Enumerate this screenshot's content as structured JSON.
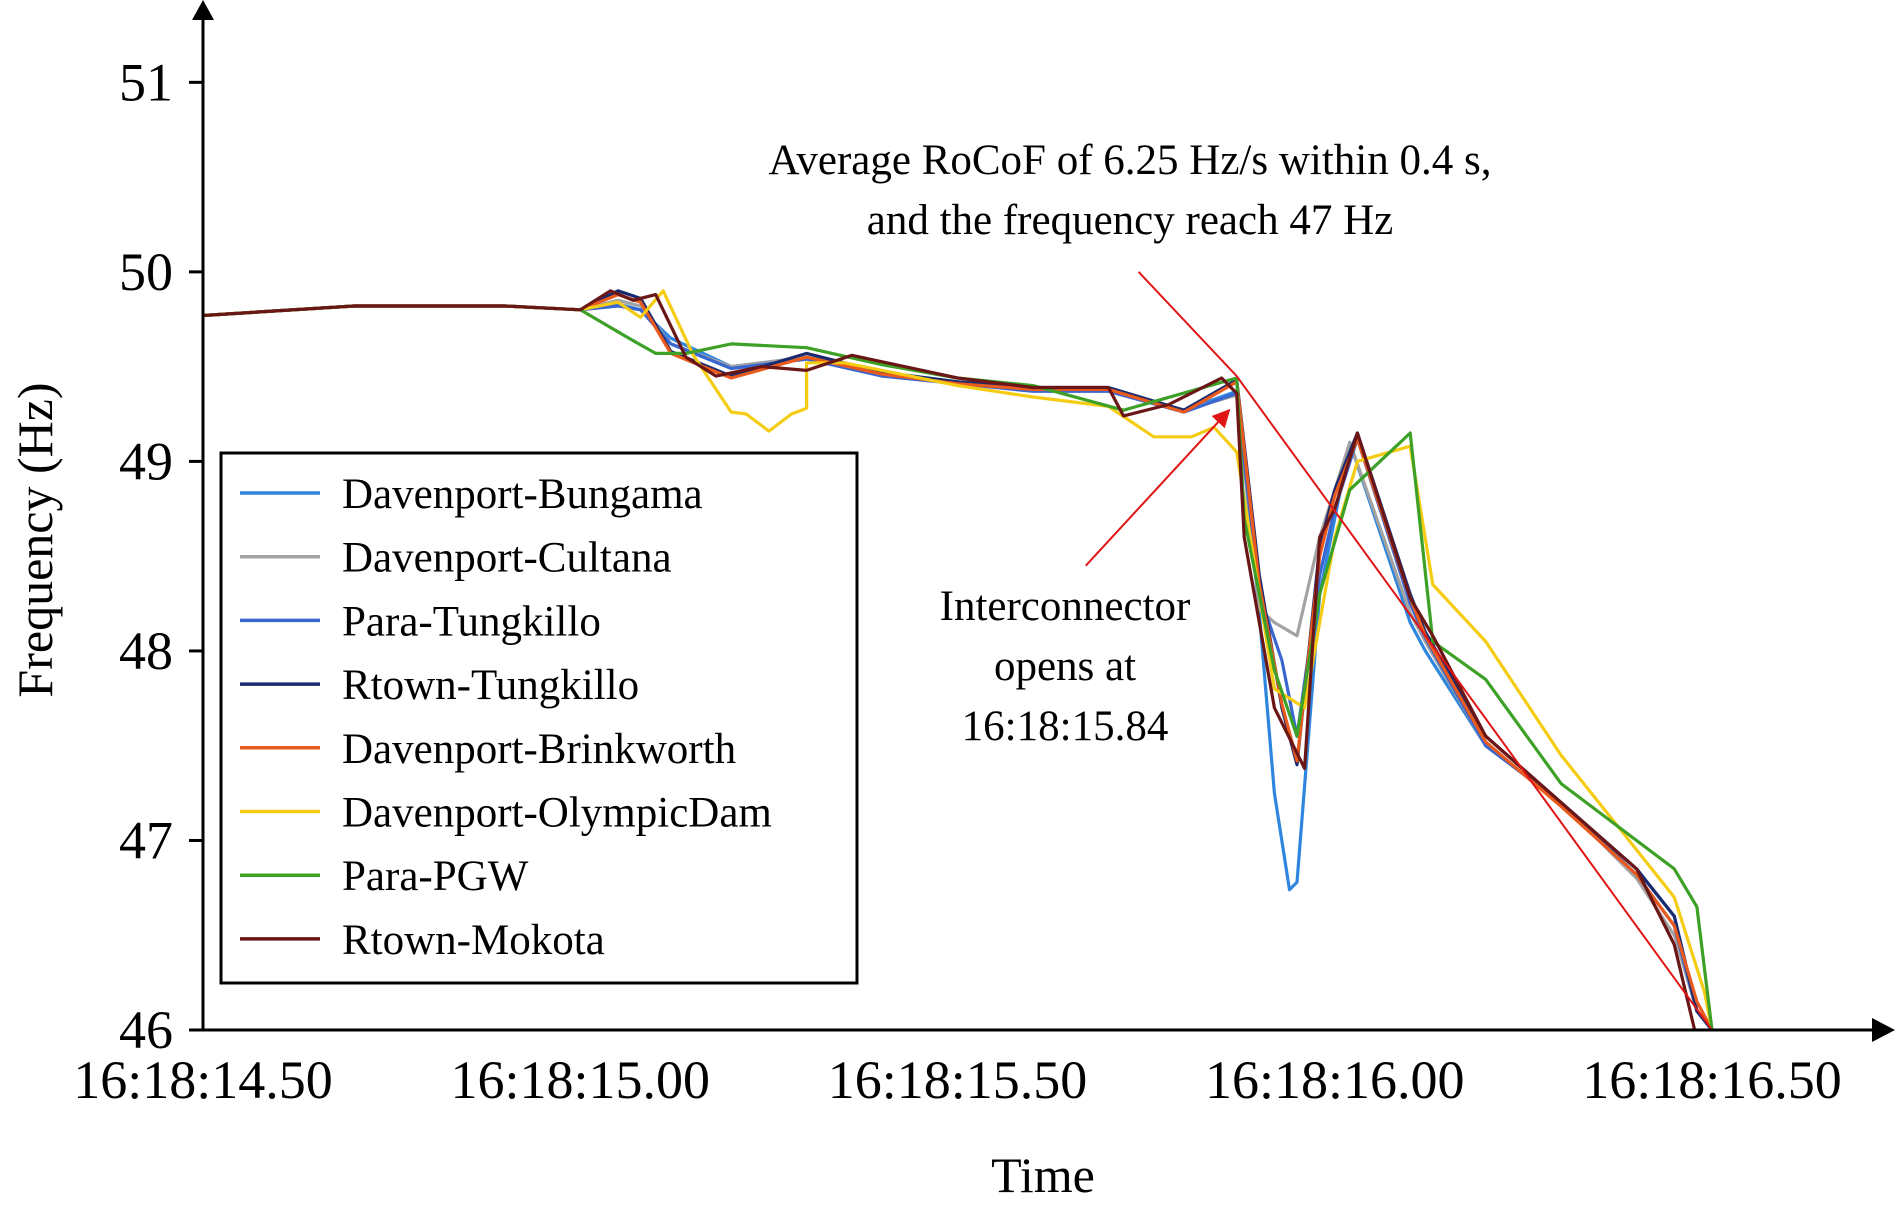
{
  "chart_data": {
    "type": "line",
    "title": "",
    "xlabel": "Time",
    "ylabel": "Frequency (Hz)",
    "x_unit": "seconds after 16:18:00",
    "xlim": [
      14.5,
      16.72
    ],
    "ylim": [
      46,
      51.35
    ],
    "x_ticks": [
      {
        "value": 14.5,
        "label": "16:18:14.50"
      },
      {
        "value": 15.0,
        "label": "16:18:15.00"
      },
      {
        "value": 15.5,
        "label": "16:18:15.50"
      },
      {
        "value": 16.0,
        "label": "16:18:16.00"
      },
      {
        "value": 16.5,
        "label": "16:18:16.50"
      }
    ],
    "y_ticks": [
      {
        "value": 46,
        "label": "46"
      },
      {
        "value": 47,
        "label": "47"
      },
      {
        "value": 48,
        "label": "48"
      },
      {
        "value": 49,
        "label": "49"
      },
      {
        "value": 50,
        "label": "50"
      },
      {
        "value": 51,
        "label": "51"
      }
    ],
    "grid": false,
    "legend_position": "bottom-left",
    "series": [
      {
        "name": "Davenport-Bungama",
        "color": "#2e86de",
        "x": [
          14.5,
          14.7,
          14.9,
          15.0,
          15.05,
          15.08,
          15.12,
          15.2,
          15.3,
          15.4,
          15.5,
          15.6,
          15.7,
          15.8,
          15.87,
          15.9,
          15.92,
          15.94,
          15.95,
          15.98,
          16.0,
          16.02,
          16.1,
          16.12,
          16.2,
          16.3,
          16.4,
          16.45,
          16.48,
          16.5,
          16.51
        ],
        "y": [
          49.77,
          49.82,
          49.82,
          49.8,
          49.83,
          49.8,
          49.65,
          49.5,
          49.55,
          49.47,
          49.42,
          49.38,
          49.38,
          49.27,
          49.37,
          48.2,
          47.25,
          46.74,
          46.78,
          48.3,
          48.7,
          49.1,
          48.15,
          48.0,
          47.5,
          47.2,
          46.85,
          46.6,
          46.1,
          46.0,
          45.98
        ]
      },
      {
        "name": "Davenport-Cultana",
        "color": "#a3a3a3",
        "x": [
          14.5,
          14.7,
          14.9,
          15.0,
          15.05,
          15.08,
          15.12,
          15.2,
          15.3,
          15.4,
          15.5,
          15.6,
          15.7,
          15.8,
          15.87,
          15.9,
          15.92,
          15.95,
          15.98,
          16.0,
          16.02,
          16.1,
          16.12,
          16.2,
          16.3,
          16.4,
          16.45,
          16.48,
          16.5
        ],
        "y": [
          49.77,
          49.82,
          49.82,
          49.8,
          49.85,
          49.82,
          49.62,
          49.5,
          49.55,
          49.46,
          49.42,
          49.38,
          49.38,
          49.27,
          49.35,
          48.22,
          48.15,
          48.08,
          48.6,
          48.85,
          49.1,
          48.2,
          48.05,
          47.5,
          47.2,
          46.8,
          46.5,
          46.1,
          46.0
        ]
      },
      {
        "name": "Para-Tungkillo",
        "color": "#3a66d0",
        "x": [
          14.5,
          14.7,
          14.9,
          15.0,
          15.05,
          15.08,
          15.12,
          15.2,
          15.3,
          15.4,
          15.5,
          15.6,
          15.7,
          15.8,
          15.87,
          15.9,
          15.93,
          15.95,
          15.98,
          16.0,
          16.03,
          16.1,
          16.12,
          16.2,
          16.3,
          16.4,
          16.45,
          16.48,
          16.5
        ],
        "y": [
          49.77,
          49.82,
          49.82,
          49.8,
          49.82,
          49.8,
          49.62,
          49.49,
          49.54,
          49.45,
          49.41,
          49.37,
          49.37,
          49.26,
          49.36,
          48.3,
          47.95,
          47.55,
          48.4,
          48.75,
          49.12,
          48.25,
          48.07,
          47.5,
          47.2,
          46.82,
          46.55,
          46.1,
          46.0
        ]
      },
      {
        "name": "Rtown-Tungkillo",
        "color": "#1a2a6e",
        "x": [
          14.5,
          14.7,
          14.9,
          15.0,
          15.05,
          15.08,
          15.12,
          15.2,
          15.3,
          15.4,
          15.5,
          15.6,
          15.7,
          15.8,
          15.87,
          15.9,
          15.93,
          15.95,
          15.98,
          16.0,
          16.03,
          16.1,
          16.12,
          16.2,
          16.3,
          16.4,
          16.45,
          16.48,
          16.5
        ],
        "y": [
          49.77,
          49.82,
          49.82,
          49.8,
          49.9,
          49.86,
          49.58,
          49.45,
          49.57,
          49.47,
          49.42,
          49.39,
          49.39,
          49.27,
          49.43,
          48.4,
          47.7,
          47.4,
          48.55,
          48.85,
          49.15,
          48.3,
          48.1,
          47.55,
          47.2,
          46.85,
          46.6,
          46.1,
          46.0
        ]
      },
      {
        "name": "Davenport-Brinkworth",
        "color": "#ea5a1c",
        "x": [
          14.5,
          14.7,
          14.9,
          15.0,
          15.05,
          15.08,
          15.12,
          15.2,
          15.3,
          15.4,
          15.5,
          15.6,
          15.7,
          15.8,
          15.87,
          15.9,
          15.93,
          15.95,
          15.98,
          16.0,
          16.03,
          16.1,
          16.12,
          16.2,
          16.3,
          16.4,
          16.45,
          16.48,
          16.5
        ],
        "y": [
          49.77,
          49.82,
          49.82,
          49.8,
          49.88,
          49.84,
          49.57,
          49.44,
          49.55,
          49.46,
          49.41,
          49.38,
          49.38,
          49.26,
          49.42,
          48.35,
          47.72,
          47.42,
          48.5,
          48.82,
          49.12,
          48.28,
          48.08,
          47.52,
          47.18,
          46.82,
          46.55,
          46.15,
          46.0
        ]
      },
      {
        "name": "Davenport-OlympicDam",
        "color": "#f5cc14",
        "x": [
          14.5,
          14.7,
          14.9,
          15.0,
          15.05,
          15.08,
          15.11,
          15.15,
          15.2,
          15.22,
          15.25,
          15.28,
          15.3,
          15.3,
          15.35,
          15.5,
          15.6,
          15.7,
          15.76,
          15.81,
          15.84,
          15.87,
          15.92,
          15.96,
          16.0,
          16.03,
          16.1,
          16.13,
          16.2,
          16.3,
          16.4,
          16.45,
          16.49,
          16.5
        ],
        "y": [
          49.77,
          49.82,
          49.82,
          49.8,
          49.84,
          49.76,
          49.9,
          49.56,
          49.26,
          49.25,
          49.16,
          49.25,
          49.28,
          49.52,
          49.52,
          49.4,
          49.34,
          49.29,
          49.13,
          49.13,
          49.18,
          49.05,
          47.8,
          47.7,
          48.6,
          49.0,
          49.08,
          48.35,
          48.05,
          47.45,
          46.95,
          46.7,
          46.2,
          46.0
        ]
      },
      {
        "name": "Para-PGW",
        "color": "#3da127",
        "x": [
          14.5,
          14.7,
          14.9,
          15.0,
          15.06,
          15.1,
          15.14,
          15.2,
          15.3,
          15.4,
          15.5,
          15.6,
          15.72,
          15.87,
          15.88,
          15.92,
          15.95,
          15.98,
          16.02,
          16.1,
          16.13,
          16.2,
          16.3,
          16.4,
          16.45,
          16.48,
          16.5
        ],
        "y": [
          49.77,
          49.82,
          49.82,
          49.8,
          49.66,
          49.57,
          49.57,
          49.62,
          49.6,
          49.51,
          49.44,
          49.4,
          49.27,
          49.44,
          48.7,
          47.9,
          47.55,
          48.3,
          48.85,
          49.15,
          48.05,
          47.85,
          47.3,
          47.0,
          46.85,
          46.65,
          46.0
        ]
      },
      {
        "name": "Rtown-Mokota",
        "color": "#6b1616",
        "x": [
          14.5,
          14.7,
          14.9,
          15.0,
          15.04,
          15.07,
          15.1,
          15.14,
          15.18,
          15.24,
          15.3,
          15.36,
          15.5,
          15.6,
          15.7,
          15.72,
          15.78,
          15.85,
          15.87,
          15.88,
          15.92,
          15.96,
          15.98,
          16.0,
          16.03,
          16.1,
          16.13,
          16.2,
          16.3,
          16.4,
          16.45,
          16.48,
          16.5
        ],
        "y": [
          49.77,
          49.82,
          49.82,
          49.8,
          49.9,
          49.85,
          49.88,
          49.55,
          49.45,
          49.5,
          49.48,
          49.56,
          49.44,
          49.39,
          49.39,
          49.24,
          49.3,
          49.44,
          49.36,
          48.6,
          47.7,
          47.38,
          48.6,
          48.75,
          49.15,
          48.28,
          48.08,
          47.55,
          47.2,
          46.85,
          46.45,
          45.95,
          45.9
        ]
      }
    ],
    "annotations": [
      {
        "kind": "rocof-line",
        "color": "#e01515",
        "text_lines": [
          "Average RoCoF of 6.25 Hz/s within 0.4 s,",
          "and the frequency reach 47 Hz"
        ],
        "line_from": {
          "x": 15.87,
          "y": 49.45
        },
        "line_to": {
          "x": 16.5,
          "y": 46.0
        },
        "pointer_from": {
          "x": 15.74,
          "y": 50.0
        }
      },
      {
        "kind": "arrow",
        "color": "#e01515",
        "text_lines": [
          "Interconnector",
          "opens at",
          "16:18:15.84"
        ],
        "arrow_from": {
          "x": 15.67,
          "y": 48.45
        },
        "arrow_to": {
          "x": 15.86,
          "y": 49.27
        }
      }
    ]
  }
}
